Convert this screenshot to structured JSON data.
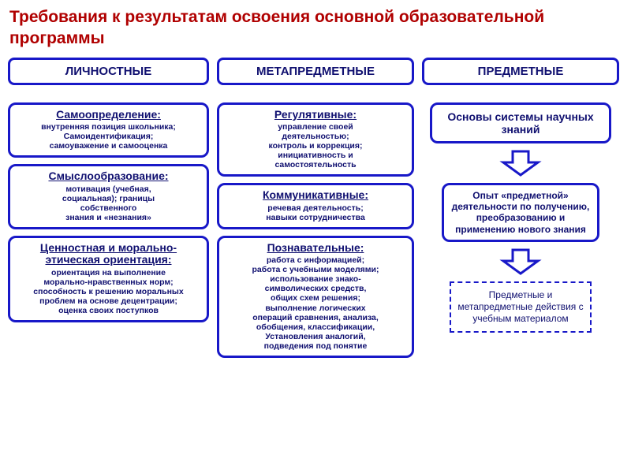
{
  "title": "Требования к результатам освоения основной образовательной  программы",
  "colors": {
    "title": "#b00000",
    "border": "#1818c8",
    "text": "#101070",
    "arrow_fill": "#ffffff",
    "arrow_stroke": "#1818c8",
    "bg": "#ffffff"
  },
  "columns": {
    "personal": {
      "header": "ЛИЧНОСТНЫЕ",
      "boxes": [
        {
          "heading": "Самоопределение:",
          "body": "внутренняя позиция школьника;\nСамоидентификация;\nсамоуважение и самооценка"
        },
        {
          "heading": "Смыслообразование:",
          "body": "мотивация (учебная,\nсоциальная); границы\nсобственного\nзнания и «незнания»"
        },
        {
          "heading": "Ценностная и морально-этическая ориентация:",
          "body": "ориентация на выполнение\nморально-нравственных норм;\nспособность к решению моральных\nпроблем на основе децентрации;\nоценка своих поступков"
        }
      ]
    },
    "meta": {
      "header": "МЕТАПРЕДМЕТНЫЕ",
      "boxes": [
        {
          "heading": "Регулятивные:",
          "body": "управление своей\nдеятельностью;\nконтроль и коррекция;\nинициативность и\nсамостоятельность"
        },
        {
          "heading": "Коммуникативные:",
          "body": "речевая деятельность;\nнавыки сотрудничества"
        },
        {
          "heading": "Познавательные:",
          "body": "работа с информацией;\nработа с учебными моделями;\nиспользование знако-\nсимволических средств,\nобщих схем решения;\nвыполнение логических\nопераций сравнения,  анализа,\nобобщения, классификации,\nУстановления аналогий,\nподведения под понятие"
        }
      ]
    },
    "subject": {
      "header": "ПРЕДМЕТНЫЕ",
      "basis": "Основы системы научных знаний",
      "experience": "Опыт «предметной» деятельности по получению, преобразованию и применению нового знания",
      "actions": "Предметные и метапредметные действия с учебным материалом"
    }
  },
  "arrow": {
    "stroke_width": 3
  }
}
